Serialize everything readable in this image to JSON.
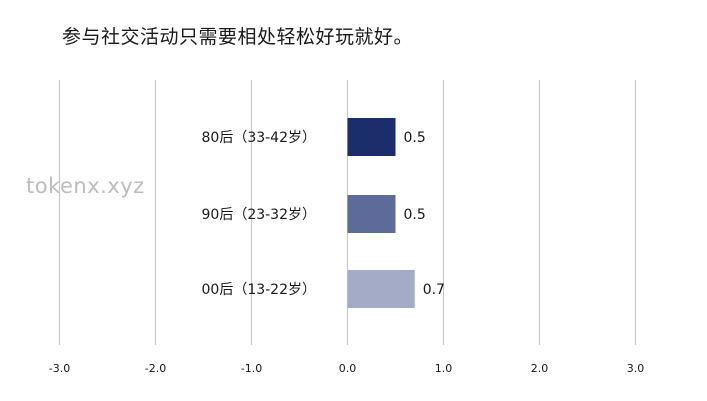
{
  "watermark": "tokenx.xyz",
  "chart_data": {
    "type": "bar",
    "orientation": "horizontal",
    "title": "参与社交活动只需要相处轻松好玩就好。",
    "categories": [
      "80后（33-42岁）",
      "90后（23-32岁）",
      "00后（13-22岁）"
    ],
    "values": [
      0.5,
      0.5,
      0.7
    ],
    "value_labels": [
      "0.5",
      "0.5",
      "0.7"
    ],
    "bar_colors": [
      "#1b2e6b",
      "#5c6b99",
      "#a3abc6"
    ],
    "xlim": [
      -3.0,
      3.0
    ],
    "xticks": [
      "-3.0",
      "-2.0",
      "-1.0",
      "0.0",
      "1.0",
      "2.0",
      "3.0"
    ],
    "grid": "vertical",
    "grid_color": "#c8c8c8",
    "legend": "none"
  }
}
